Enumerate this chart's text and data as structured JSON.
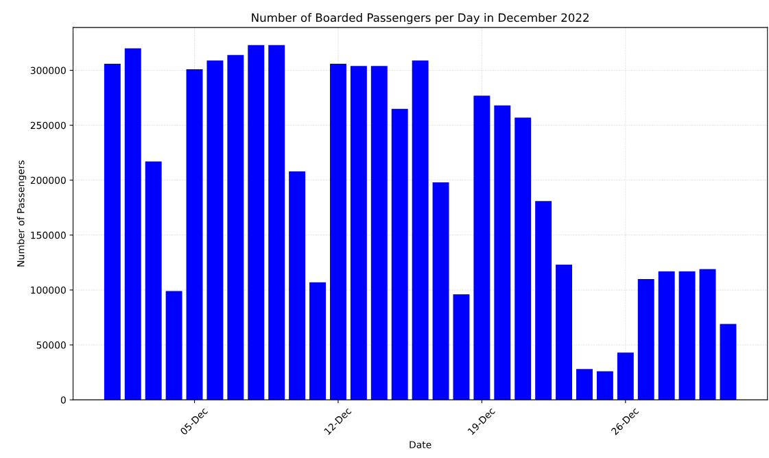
{
  "chart_data": {
    "type": "bar",
    "title": "Number of Boarded Passengers per Day in December 2022",
    "xlabel": "Date",
    "ylabel": "Number of Passengers",
    "x": [
      "2022-12-01",
      "2022-12-02",
      "2022-12-03",
      "2022-12-04",
      "2022-12-05",
      "2022-12-06",
      "2022-12-07",
      "2022-12-08",
      "2022-12-09",
      "2022-12-10",
      "2022-12-11",
      "2022-12-12",
      "2022-12-13",
      "2022-12-14",
      "2022-12-15",
      "2022-12-16",
      "2022-12-17",
      "2022-12-18",
      "2022-12-19",
      "2022-12-20",
      "2022-12-21",
      "2022-12-22",
      "2022-12-23",
      "2022-12-24",
      "2022-12-25",
      "2022-12-26",
      "2022-12-27",
      "2022-12-28",
      "2022-12-29",
      "2022-12-30",
      "2022-12-31"
    ],
    "values": [
      306000,
      320000,
      217000,
      99000,
      301000,
      309000,
      314000,
      323000,
      323000,
      208000,
      107000,
      306000,
      304000,
      304000,
      265000,
      309000,
      198000,
      96000,
      277000,
      268000,
      257000,
      181000,
      123000,
      28000,
      26000,
      43000,
      110000,
      117000,
      117000,
      119000,
      69000
    ],
    "color": "#0000ff",
    "xlim": [
      "2022-11-29T02:00",
      "2023-01-01T22:00"
    ],
    "xticks": [
      {
        "value": "2022-12-05",
        "label": "05-Dec"
      },
      {
        "value": "2022-12-12",
        "label": "12-Dec"
      },
      {
        "value": "2022-12-19",
        "label": "19-Dec"
      },
      {
        "value": "2022-12-26",
        "label": "26-Dec"
      }
    ],
    "ylim": [
      0,
      339000
    ],
    "yticks": [
      0,
      50000,
      100000,
      150000,
      200000,
      250000,
      300000
    ],
    "grid": true
  }
}
